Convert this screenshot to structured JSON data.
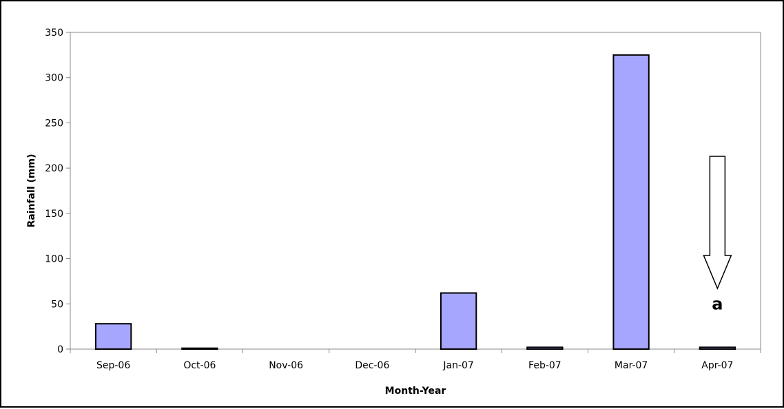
{
  "chart_data": {
    "type": "bar",
    "categories": [
      "Sep-06",
      "Oct-06",
      "Nov-06",
      "Dec-06",
      "Jan-07",
      "Feb-07",
      "Mar-07",
      "Apr-07"
    ],
    "values": [
      28,
      1,
      0,
      0,
      62,
      2,
      325,
      2
    ],
    "xlabel": "Month-Year",
    "ylabel": "Rainfall (mm)",
    "ylim": [
      0,
      350
    ],
    "yticks": [
      0,
      50,
      100,
      150,
      200,
      250,
      300,
      350
    ],
    "grid": false,
    "legend": "none",
    "bar_color": "#a6a6ff",
    "annotations": [
      {
        "label": "a",
        "category": "Apr-07",
        "arrow": "down",
        "arrow_top_value": 213,
        "arrow_tip_value": 67,
        "label_value": 50
      }
    ]
  }
}
